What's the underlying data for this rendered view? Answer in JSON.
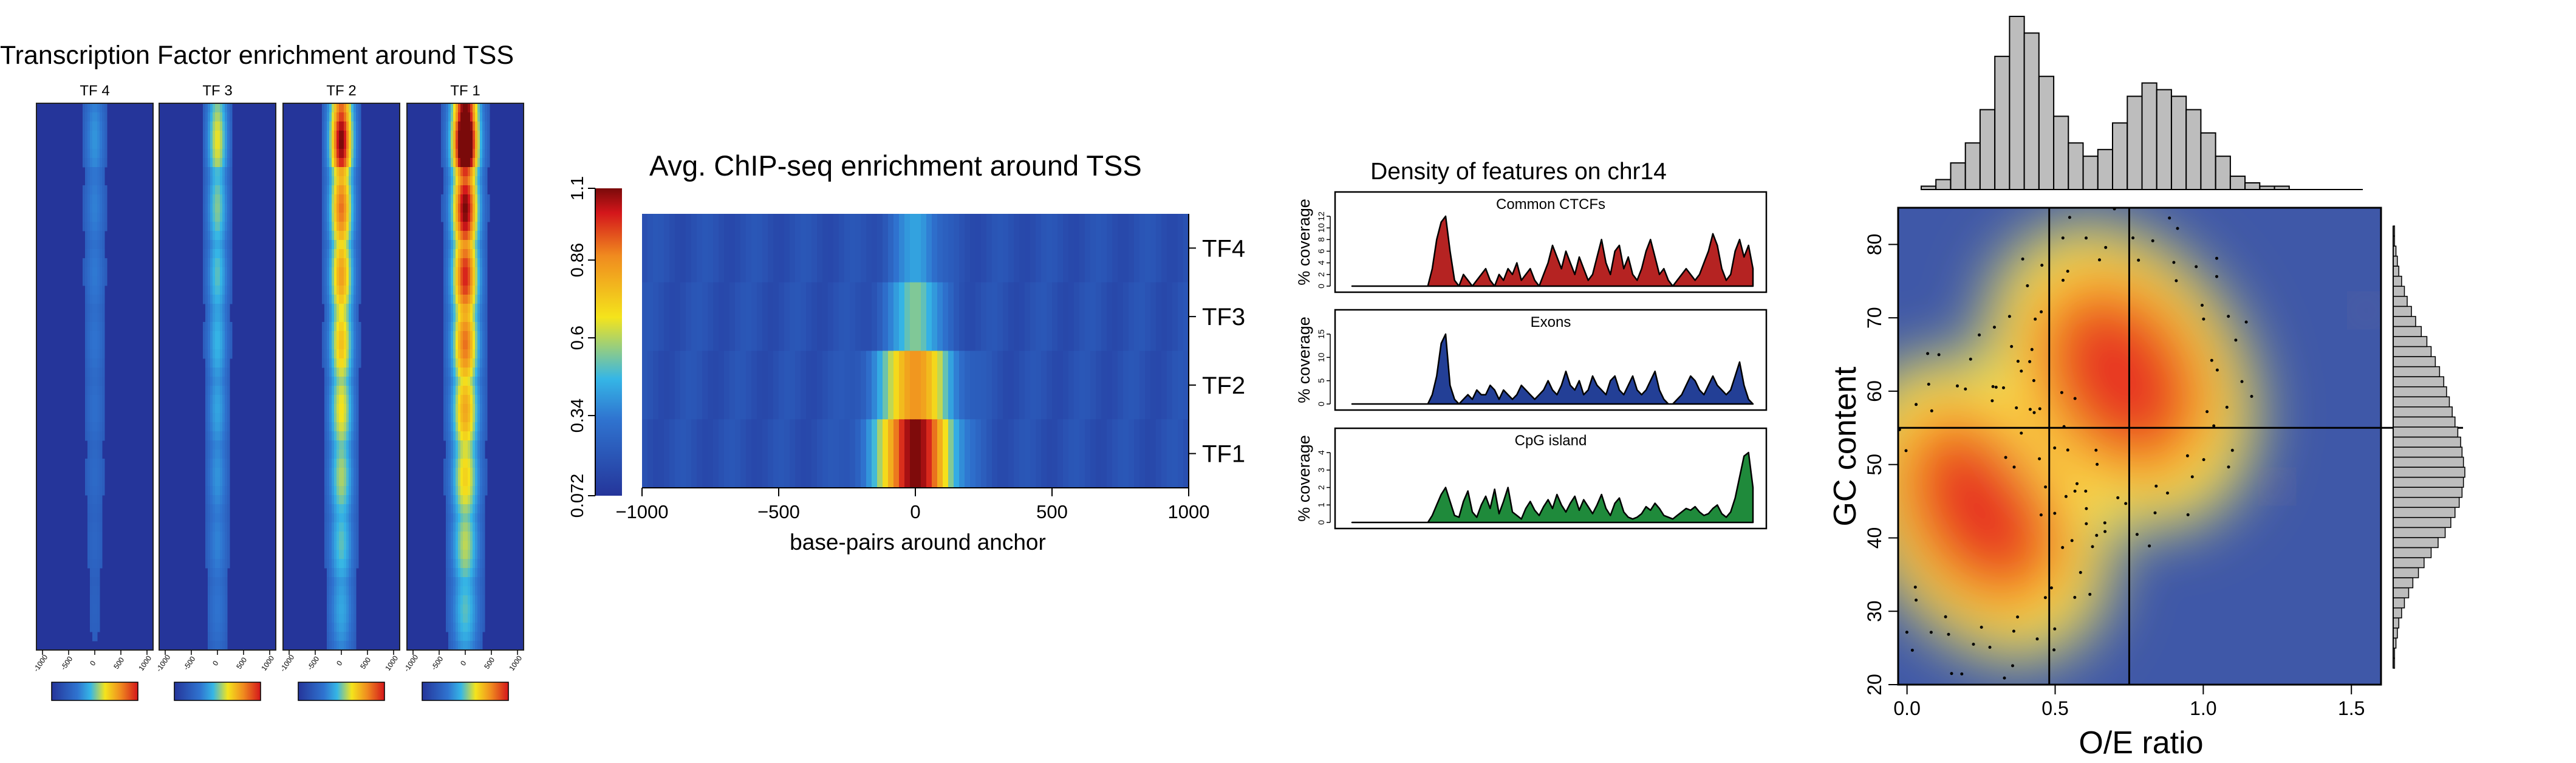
{
  "colors": {
    "low": "#25359a",
    "mid": "#35b6e6",
    "yellow": "#f4e41c",
    "high": "#e0261b",
    "max": "#7a0a0a",
    "ctcf": "#b52322",
    "exons": "#233f96",
    "cpg": "#1f8a3b",
    "hist": "#bdbdbd",
    "density_bg": "#3f58a8"
  },
  "chart_data": [
    {
      "type": "heatmap",
      "title": "Transcription Factor enrichment around TSS",
      "panels": [
        {
          "label": "TF 4",
          "peak": 0.18,
          "width": 0.06
        },
        {
          "label": "TF 3",
          "peak": 0.4,
          "width": 0.06
        },
        {
          "label": "TF 2",
          "peak": 0.78,
          "width": 0.07
        },
        {
          "label": "TF 1",
          "peak": 1.0,
          "width": 0.08
        }
      ],
      "x_ticks": [
        "-1000",
        "-500",
        "0",
        "500",
        "1000"
      ],
      "note_colorbar": "per-panel color scale blue to red"
    },
    {
      "type": "heatmap",
      "title": "Avg. ChIP-seq enrichment around TSS",
      "xlabel": "base-pairs around anchor",
      "xlim": [
        -1000,
        1000
      ],
      "x_ticks": [
        "−1000",
        "−500",
        "0",
        "500",
        "1000"
      ],
      "rows": [
        {
          "label": "TF4",
          "peak": 0.44,
          "sigma": 60
        },
        {
          "label": "TF3",
          "peak": 0.56,
          "sigma": 70
        },
        {
          "label": "TF2",
          "peak": 0.85,
          "sigma": 95
        },
        {
          "label": "TF1",
          "peak": 1.1,
          "sigma": 100
        }
      ],
      "colorbar_ticks": [
        "0.072",
        "0.34",
        "0.6",
        "0.86",
        "1.1"
      ],
      "colorbar_range": [
        0.072,
        1.1
      ]
    },
    {
      "type": "area",
      "title": "Density of features on chr14",
      "ylabel": "% coverage",
      "series": [
        {
          "name": "Common CTCFs",
          "yticks": [
            "0",
            "2",
            "4",
            "6",
            "8",
            "10",
            "12"
          ],
          "ymax": 12,
          "values": [
            0,
            0,
            0,
            0,
            0,
            0,
            0,
            0,
            0,
            0,
            0,
            0,
            0,
            0,
            0,
            0,
            0,
            0,
            3,
            8,
            11,
            12,
            6,
            1,
            0,
            2,
            1,
            0,
            1,
            2,
            3,
            1,
            0,
            2,
            1,
            3,
            2,
            4,
            1,
            2,
            3,
            1,
            0,
            2,
            4,
            7,
            5,
            3,
            6,
            4,
            2,
            5,
            3,
            1,
            2,
            5,
            8,
            4,
            2,
            6,
            7,
            3,
            5,
            2,
            1,
            3,
            6,
            8,
            5,
            2,
            3,
            1,
            0,
            1,
            2,
            3,
            2,
            1,
            2,
            4,
            6,
            9,
            7,
            3,
            1,
            2,
            6,
            8,
            5,
            7,
            3
          ]
        },
        {
          "name": "Exons",
          "yticks": [
            "0",
            "5",
            "10",
            "15"
          ],
          "ymax": 15,
          "values": [
            0,
            0,
            0,
            0,
            0,
            0,
            0,
            0,
            0,
            0,
            0,
            0,
            0,
            0,
            0,
            0,
            0,
            0,
            2,
            6,
            13,
            15,
            4,
            1,
            0,
            1,
            2,
            1,
            3,
            2,
            2,
            4,
            3,
            1,
            3,
            2,
            1,
            2,
            4,
            3,
            2,
            1,
            2,
            3,
            5,
            3,
            2,
            4,
            7,
            4,
            3,
            5,
            2,
            3,
            6,
            4,
            3,
            2,
            5,
            6,
            3,
            2,
            4,
            6,
            3,
            2,
            3,
            5,
            7,
            3,
            1,
            0,
            0,
            1,
            2,
            4,
            6,
            5,
            3,
            2,
            4,
            6,
            4,
            3,
            2,
            3,
            6,
            9,
            4,
            1,
            0
          ]
        },
        {
          "name": "CpG island",
          "yticks": [
            "0",
            "1",
            "2",
            "3",
            "4"
          ],
          "ymax": 4,
          "values": [
            0,
            0,
            0,
            0,
            0,
            0,
            0,
            0,
            0,
            0,
            0,
            0,
            0,
            0,
            0,
            0,
            0,
            0,
            0.4,
            1.0,
            1.6,
            2.0,
            1.2,
            0.4,
            0.3,
            1.2,
            1.8,
            0.6,
            0.3,
            1.0,
            1.5,
            0.8,
            1.9,
            0.5,
            1.2,
            2.0,
            0.6,
            0.4,
            0.2,
            0.8,
            1.2,
            0.7,
            0.4,
            0.9,
            1.3,
            0.8,
            1.6,
            1.0,
            0.6,
            1.1,
            1.5,
            0.7,
            1.3,
            0.9,
            0.5,
            1.0,
            1.6,
            0.8,
            0.4,
            1.1,
            1.4,
            0.6,
            0.3,
            0.2,
            0.3,
            0.5,
            0.9,
            0.7,
            1.1,
            0.8,
            0.4,
            0.3,
            0.2,
            0.4,
            0.6,
            0.8,
            0.7,
            0.9,
            0.6,
            0.4,
            0.5,
            0.8,
            1.0,
            0.5,
            0.3,
            0.6,
            1.4,
            2.6,
            3.8,
            4.0,
            2.0
          ]
        }
      ]
    },
    {
      "type": "scatter",
      "xlabel": "O/E ratio",
      "ylabel": "GC content",
      "xlim": [
        -0.03,
        1.6
      ],
      "ylim": [
        20,
        85
      ],
      "x_ticks": [
        0.0,
        0.5,
        1.0,
        1.5
      ],
      "x_tick_labels": [
        "0.0",
        "0.5",
        "1.0",
        "1.5"
      ],
      "y_ticks": [
        20,
        30,
        40,
        50,
        60,
        70,
        80
      ],
      "vlines": [
        0.48,
        0.75
      ],
      "hline": 55,
      "density_clusters": [
        {
          "x": 0.25,
          "y": 44,
          "sx": 0.17,
          "sy": 10
        },
        {
          "x": 0.72,
          "y": 62,
          "sx": 0.18,
          "sy": 10
        }
      ],
      "hist_top": [
        1,
        3,
        8,
        14,
        24,
        40,
        52,
        47,
        34,
        22,
        14,
        10,
        12,
        20,
        28,
        32,
        30,
        28,
        24,
        17,
        10,
        4,
        2,
        1,
        1,
        0,
        0,
        0,
        0,
        0
      ],
      "hist_right": [
        1,
        1,
        2,
        3,
        4,
        6,
        8,
        11,
        14,
        18,
        22,
        27,
        32,
        37,
        41,
        44,
        47,
        49,
        50,
        51,
        50,
        49,
        48,
        46,
        44,
        42,
        40,
        38,
        36,
        33,
        30,
        27,
        24,
        20,
        16,
        13,
        10,
        8,
        6,
        4,
        3,
        2,
        1,
        1
      ]
    }
  ]
}
